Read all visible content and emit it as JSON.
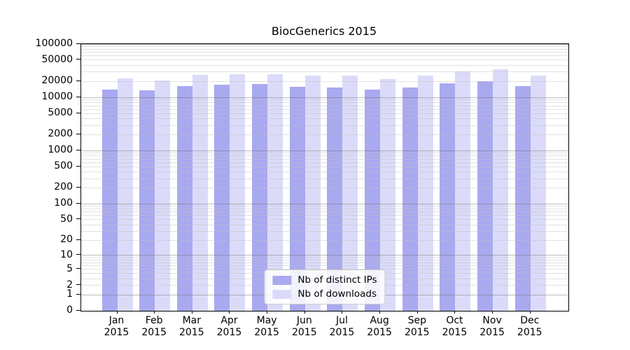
{
  "chart_data": {
    "type": "bar",
    "title": "BiocGenerics 2015",
    "xlabel": "",
    "ylabel": "",
    "scale": "log10(value+1)",
    "ylim": [
      0,
      100000
    ],
    "yticks": [
      0,
      1,
      2,
      5,
      10,
      20,
      50,
      100,
      200,
      500,
      1000,
      2000,
      5000,
      10000,
      20000,
      50000,
      100000
    ],
    "grid": "on, minor and major decade gridlines drawn over bars",
    "legend_position": "bottom-center",
    "categories": [
      "Jan 2015",
      "Feb 2015",
      "Mar 2015",
      "Apr 2015",
      "May 2015",
      "Jun 2015",
      "Jul 2015",
      "Aug 2015",
      "Sep 2015",
      "Oct 2015",
      "Nov 2015",
      "Dec 2015"
    ],
    "series": [
      {
        "name": "Nb of distinct IPs",
        "color": "#a9a9f0",
        "values": [
          14000,
          13500,
          16500,
          17500,
          18000,
          16000,
          15500,
          14000,
          15500,
          18500,
          20000,
          16500
        ]
      },
      {
        "name": "Nb of downloads",
        "color": "#dbdbf9",
        "values": [
          22500,
          21000,
          26500,
          27000,
          27500,
          26000,
          25500,
          22000,
          25500,
          30500,
          34000,
          25500
        ]
      }
    ],
    "colors": {
      "grid_major": "#787878",
      "grid_minor": "#bebebe",
      "spine": "#000000",
      "background": "#ffffff"
    }
  }
}
